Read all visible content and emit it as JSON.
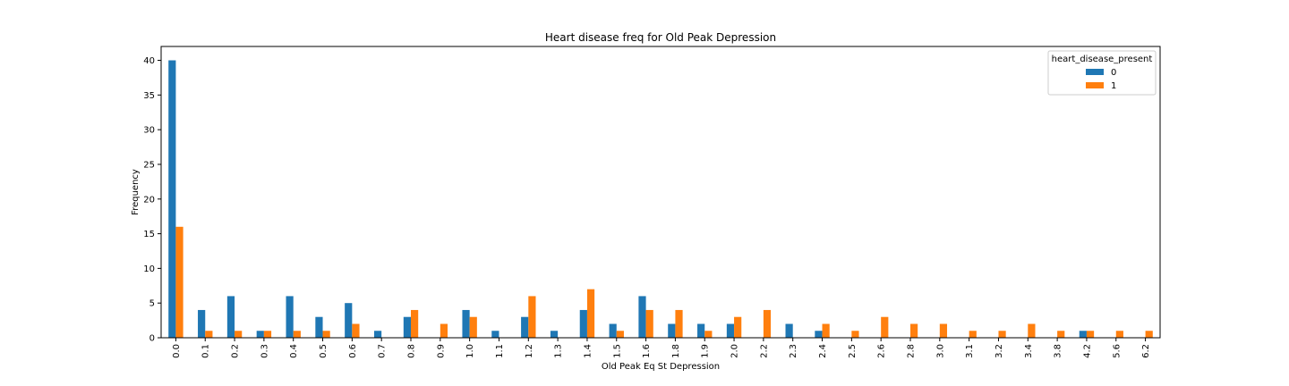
{
  "chart_data": {
    "type": "bar",
    "title": "Heart disease freq for Old Peak Depression",
    "xlabel": "Old Peak Eq St Depression",
    "ylabel": "Frequency",
    "ylim": [
      0,
      42
    ],
    "yticks": [
      0,
      5,
      10,
      15,
      20,
      25,
      30,
      35,
      40
    ],
    "grid": false,
    "legend": {
      "title": "heart_disease_present",
      "placement": "top-right"
    },
    "categories": [
      "0.0",
      "0.1",
      "0.2",
      "0.3",
      "0.4",
      "0.5",
      "0.6",
      "0.7",
      "0.8",
      "0.9",
      "1.0",
      "1.1",
      "1.2",
      "1.3",
      "1.4",
      "1.5",
      "1.6",
      "1.8",
      "1.9",
      "2.0",
      "2.2",
      "2.3",
      "2.4",
      "2.5",
      "2.6",
      "2.8",
      "3.0",
      "3.1",
      "3.2",
      "3.4",
      "3.8",
      "4.2",
      "5.6",
      "6.2"
    ],
    "series": [
      {
        "name": "0",
        "color": "#1f77b4",
        "values": [
          40,
          4,
          6,
          1,
          6,
          3,
          5,
          1,
          3,
          0,
          4,
          1,
          3,
          1,
          4,
          2,
          6,
          2,
          2,
          2,
          0,
          2,
          1,
          0,
          0,
          0,
          0,
          0,
          0,
          0,
          0,
          1,
          0,
          0
        ]
      },
      {
        "name": "1",
        "color": "#ff7f0e",
        "values": [
          16,
          1,
          1,
          1,
          1,
          1,
          2,
          0,
          4,
          2,
          3,
          0,
          6,
          0,
          7,
          1,
          4,
          4,
          1,
          3,
          4,
          0,
          2,
          1,
          3,
          2,
          2,
          1,
          1,
          2,
          1,
          1,
          1,
          1
        ]
      }
    ]
  }
}
